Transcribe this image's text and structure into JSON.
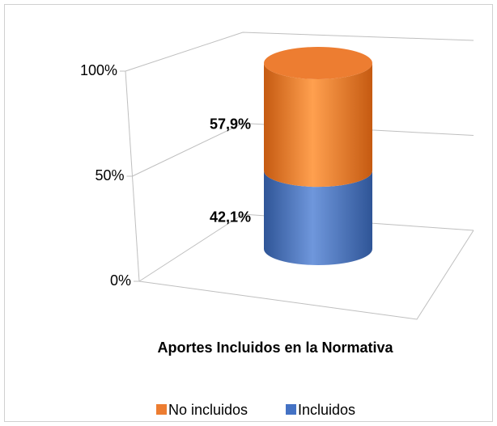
{
  "chart_data": {
    "type": "bar3d_stacked",
    "categories": [
      "Aportes Incluidos en la Normativa"
    ],
    "series": [
      {
        "name": "Incluidos",
        "color": "#4472c4",
        "values": [
          42.1
        ],
        "value_labels": [
          "42,1%"
        ]
      },
      {
        "name": "No incluidos",
        "color": "#ed7d31",
        "values": [
          57.9
        ],
        "value_labels": [
          "57,9%"
        ]
      }
    ],
    "ylim": [
      0,
      100
    ],
    "yticks": [
      {
        "value": 0,
        "label": "0%"
      },
      {
        "value": 50,
        "label": "50%"
      },
      {
        "value": 100,
        "label": "100%"
      }
    ],
    "grid": true,
    "legend": "bottom"
  }
}
